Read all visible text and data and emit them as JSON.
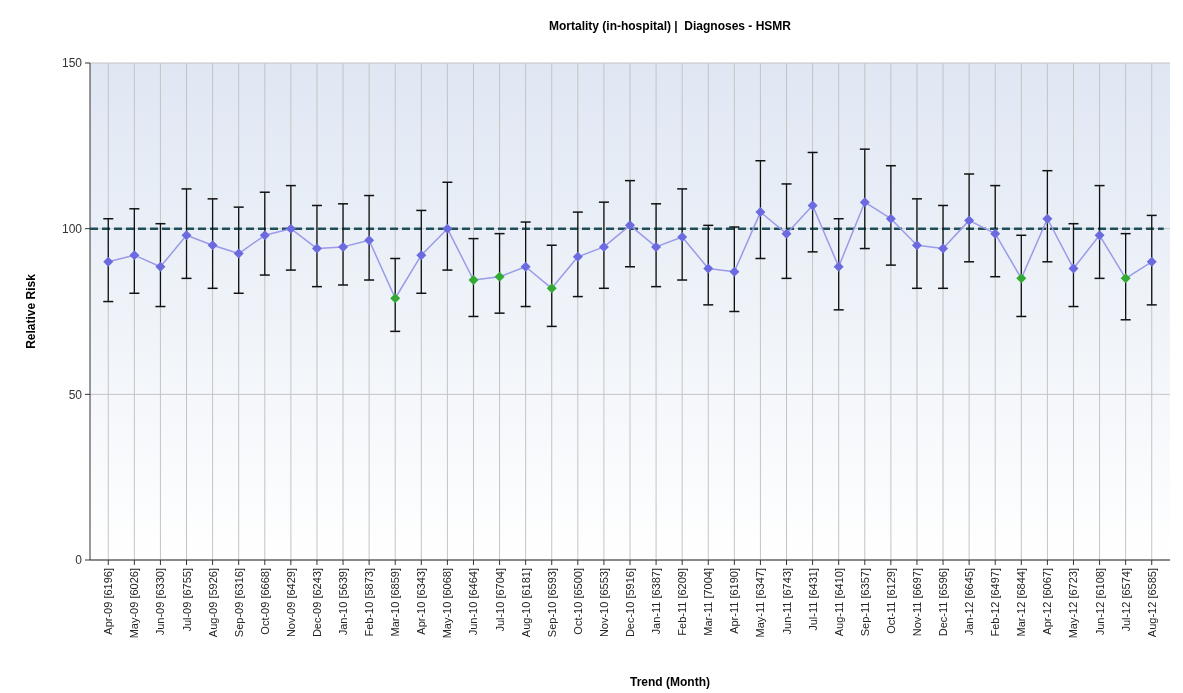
{
  "chart_data": {
    "type": "line",
    "title": "Mortality (in-hospital) |  Diagnoses - HSMR",
    "xlabel": "Trend (Month)",
    "ylabel": "Relative Risk",
    "categories": [
      "Apr-09 [6196]",
      "May-09 [6026]",
      "Jun-09 [6330]",
      "Jul-09 [6755]",
      "Aug-09 [5926]",
      "Sep-09 [6316]",
      "Oct-09 [6668]",
      "Nov-09 [6429]",
      "Dec-09 [6243]",
      "Jan-10 [5639]",
      "Feb-10 [5873]",
      "Mar-10 [6859]",
      "Apr-10 [6343]",
      "May-10 [6068]",
      "Jun-10 [6464]",
      "Jul-10 [6704]",
      "Aug-10 [6181]",
      "Sep-10 [6593]",
      "Oct-10 [6500]",
      "Nov-10 [6553]",
      "Dec-10 [5916]",
      "Jan-11 [6387]",
      "Feb-11 [6209]",
      "Mar-11 [7004]",
      "Apr-11 [6190]",
      "May-11 [6347]",
      "Jun-11 [6743]",
      "Jul-11 [6431]",
      "Aug-11 [6410]",
      "Sep-11 [6357]",
      "Oct-11 [6129]",
      "Nov-11 [6697]",
      "Dec-11 [6596]",
      "Jan-12 [6645]",
      "Feb-12 [6497]",
      "Mar-12 [6844]",
      "Apr-12 [6067]",
      "May-12 [6723]",
      "Jun-12 [6108]",
      "Jul-12 [6574]",
      "Aug-12 [6585]"
    ],
    "series": [
      {
        "color": "#9a9ae8",
        "colors": [
          "#6b6bdf",
          "#6b6bdf",
          "#6b6bdf",
          "#6b6bdf",
          "#6b6bdf",
          "#6b6bdf",
          "#6b6bdf",
          "#6b6bdf",
          "#6b6bdf",
          "#6b6bdf",
          "#6b6bdf",
          "#33aa33",
          "#6b6bdf",
          "#6b6bdf",
          "#33aa33",
          "#33aa33",
          "#6b6bdf",
          "#33aa33",
          "#6b6bdf",
          "#6b6bdf",
          "#6b6bdf",
          "#6b6bdf",
          "#6b6bdf",
          "#6b6bdf",
          "#6b6bdf",
          "#6b6bdf",
          "#6b6bdf",
          "#6b6bdf",
          "#6b6bdf",
          "#6b6bdf",
          "#6b6bdf",
          "#6b6bdf",
          "#6b6bdf",
          "#6b6bdf",
          "#6b6bdf",
          "#33aa33",
          "#6b6bdf",
          "#6b6bdf",
          "#6b6bdf",
          "#33aa33",
          "#6b6bdf"
        ],
        "values": [
          90,
          92,
          88.5,
          98,
          95,
          92.5,
          98,
          100,
          94,
          94.5,
          96.5,
          79,
          92,
          100,
          84.5,
          85.5,
          88.5,
          82,
          91.5,
          94.5,
          101,
          94.5,
          97.5,
          88,
          87,
          105,
          98.5,
          107,
          88.5,
          108,
          103,
          95,
          94,
          102.5,
          98.5,
          85,
          103,
          88,
          98,
          85,
          90
        ],
        "errors": [
          [
            78,
            103
          ],
          [
            80.5,
            106
          ],
          [
            76.5,
            101.5
          ],
          [
            85,
            112
          ],
          [
            82,
            109
          ],
          [
            80.5,
            106.5
          ],
          [
            86,
            111
          ],
          [
            87.5,
            113
          ],
          [
            82.5,
            107
          ],
          [
            83,
            107.5
          ],
          [
            84.5,
            110
          ],
          [
            69,
            91
          ],
          [
            80.5,
            105.5
          ],
          [
            87.5,
            114
          ],
          [
            73.5,
            97
          ],
          [
            74.5,
            98.5
          ],
          [
            76.5,
            102
          ],
          [
            70.5,
            95
          ],
          [
            79.5,
            105
          ],
          [
            82,
            108
          ],
          [
            88.5,
            114.5
          ],
          [
            82.5,
            107.5
          ],
          [
            84.5,
            112
          ],
          [
            77,
            101
          ],
          [
            75,
            100.5
          ],
          [
            91,
            120.5
          ],
          [
            85,
            113.5
          ],
          [
            93,
            123
          ],
          [
            75.5,
            103
          ],
          [
            94,
            124
          ],
          [
            89,
            119
          ],
          [
            82,
            109
          ],
          [
            82,
            107
          ],
          [
            90,
            116.5
          ],
          [
            85.5,
            113
          ],
          [
            73.5,
            98
          ],
          [
            90,
            117.5
          ],
          [
            76.5,
            101.5
          ],
          [
            85,
            113
          ],
          [
            72.5,
            98.5
          ],
          [
            77,
            104
          ]
        ]
      }
    ],
    "ylim": [
      0,
      150
    ],
    "yticks": [
      0,
      50,
      100,
      150
    ],
    "grid": true,
    "marker": "diamond",
    "line_style": "solid",
    "ref_lines": [
      {
        "axis": "y",
        "value": 100,
        "color": "#1f4e5a",
        "line_style": "dashed"
      }
    ]
  }
}
